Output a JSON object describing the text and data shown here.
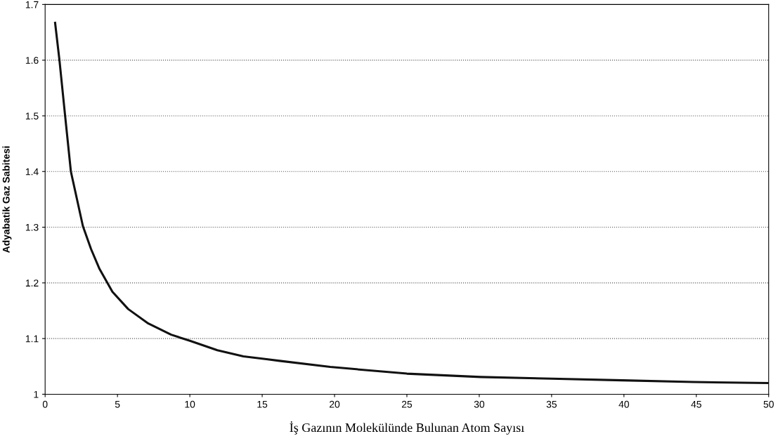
{
  "chart_data": {
    "type": "line",
    "xlabel": "İş Gazının Molekülünde Bulunan Atom Sayısı",
    "ylabel": "Adyabatik Gaz Sabitesi",
    "x": [
      0.69,
      0.99,
      1.39,
      1.78,
      2.61,
      3.17,
      3.76,
      4.65,
      5.74,
      7.13,
      8.71,
      10,
      11.9,
      13.7,
      15.3,
      16.2,
      19.7,
      25,
      30.1,
      35,
      39.9,
      44.8,
      50
    ],
    "series": [
      {
        "color": "#111111",
        "values": [
          1.667,
          1.6,
          1.498,
          1.4,
          1.302,
          1.261,
          1.225,
          1.184,
          1.153,
          1.127,
          1.107,
          1.096,
          1.079,
          1.068,
          1.063,
          1.06,
          1.049,
          1.037,
          1.031,
          1.028,
          1.025,
          1.022,
          1.02
        ]
      }
    ],
    "xlim": [
      0,
      50
    ],
    "xticks": [
      0,
      5,
      10,
      15,
      20,
      25,
      30,
      35,
      40,
      45,
      50
    ],
    "ylim": [
      1,
      1.7
    ],
    "yticks": [
      1,
      1.1,
      1.2,
      1.3,
      1.4,
      1.5,
      1.6,
      1.7
    ],
    "grid": "y",
    "legend": false,
    "marker": "none",
    "line_style": "solid"
  }
}
